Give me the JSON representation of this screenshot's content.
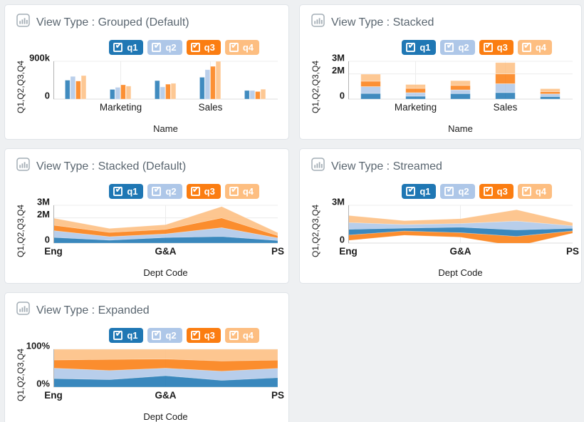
{
  "page": {
    "background": "#eef0f2"
  },
  "palette": {
    "q1": "#1f77b4",
    "q2": "#aec7e8",
    "q3": "#fb7d11",
    "q4": "#fdbe81"
  },
  "icons": {
    "checkbox_check": "✔",
    "title_icon": "bar-chart"
  },
  "legend": {
    "items": [
      {
        "label": "q1",
        "checked": true
      },
      {
        "label": "q2",
        "checked": true
      },
      {
        "label": "q3",
        "checked": true
      },
      {
        "label": "q4",
        "checked": true
      }
    ]
  },
  "cards": [
    {
      "title": "View Type : Grouped (Default)"
    },
    {
      "title": "View Type : Stacked"
    },
    {
      "title": "View Type : Stacked (Default)"
    },
    {
      "title": "View Type : Streamed"
    },
    {
      "title": "View Type : Expanded"
    }
  ],
  "chart_data": [
    {
      "type": "bar",
      "variant": "grouped",
      "title": "View Type : Grouped (Default)",
      "categories": [
        "",
        "Marketing",
        "",
        "Sales",
        ""
      ],
      "series": [
        {
          "name": "q1",
          "values": [
            450,
            230,
            440,
            520,
            205
          ]
        },
        {
          "name": "q2",
          "values": [
            540,
            280,
            290,
            700,
            205
          ]
        },
        {
          "name": "q3",
          "values": [
            430,
            340,
            355,
            780,
            180
          ]
        },
        {
          "name": "q4",
          "values": [
            560,
            310,
            375,
            900,
            235
          ]
        }
      ],
      "xlabel": "Name",
      "ylabel": "Q1,Q2,Q3,Q4",
      "ylim": [
        0,
        900
      ],
      "yticks": [
        {
          "value": 900,
          "label": "900k"
        },
        {
          "value": 0,
          "label": "0"
        }
      ],
      "units": "thousands",
      "grid": true,
      "legend_position": "top-right"
    },
    {
      "type": "bar",
      "variant": "stacked",
      "title": "View Type : Stacked",
      "categories": [
        "",
        "Marketing",
        "",
        "Sales",
        ""
      ],
      "series": [
        {
          "name": "q1",
          "values": [
            450,
            230,
            440,
            520,
            205
          ]
        },
        {
          "name": "q2",
          "values": [
            540,
            280,
            290,
            700,
            205
          ]
        },
        {
          "name": "q3",
          "values": [
            430,
            340,
            355,
            780,
            180
          ]
        },
        {
          "name": "q4",
          "values": [
            560,
            310,
            375,
            900,
            235
          ]
        }
      ],
      "xlabel": "Name",
      "ylabel": "Q1,Q2,Q3,Q4",
      "ylim": [
        0,
        3000
      ],
      "yticks": [
        {
          "value": 3000,
          "label": "3M"
        },
        {
          "value": 2000,
          "label": "2M"
        },
        {
          "value": 0,
          "label": "0"
        }
      ],
      "units": "thousands",
      "grid": true,
      "legend_position": "top-right"
    },
    {
      "type": "area",
      "variant": "stacked",
      "title": "View Type : Stacked (Default)",
      "categories": [
        "Eng",
        "",
        "G&A",
        "",
        "PS"
      ],
      "series": [
        {
          "name": "q1",
          "values": [
            450,
            230,
            440,
            520,
            205
          ]
        },
        {
          "name": "q2",
          "values": [
            540,
            280,
            290,
            700,
            205
          ]
        },
        {
          "name": "q3",
          "values": [
            430,
            340,
            355,
            780,
            180
          ]
        },
        {
          "name": "q4",
          "values": [
            560,
            310,
            375,
            900,
            235
          ]
        }
      ],
      "xlabel": "Dept Code",
      "ylabel": "Q1,Q2,Q3,Q4",
      "ylim": [
        0,
        3000
      ],
      "yticks": [
        {
          "value": 3000,
          "label": "3M"
        },
        {
          "value": 2000,
          "label": "2M"
        },
        {
          "value": 0,
          "label": "0"
        }
      ],
      "units": "thousands",
      "grid": true,
      "legend_position": "top-right"
    },
    {
      "type": "area",
      "variant": "streamed",
      "title": "View Type : Streamed",
      "categories": [
        "Eng",
        "",
        "G&A",
        "",
        "PS"
      ],
      "series": [
        {
          "name": "q1",
          "values": [
            450,
            230,
            440,
            520,
            205
          ]
        },
        {
          "name": "q2",
          "values": [
            540,
            280,
            290,
            700,
            205
          ]
        },
        {
          "name": "q3",
          "values": [
            430,
            340,
            355,
            780,
            180
          ]
        },
        {
          "name": "q4",
          "values": [
            560,
            310,
            375,
            900,
            235
          ]
        }
      ],
      "stream_order": [
        "q3",
        "q1",
        "q2",
        "q4"
      ],
      "stream_center": 1200,
      "xlabel": "Dept Code",
      "ylabel": "Q1,Q2,Q3,Q4",
      "ylim": [
        0,
        3000
      ],
      "yticks": [
        {
          "value": 3000,
          "label": "3M"
        },
        {
          "value": 0,
          "label": "0"
        }
      ],
      "units": "thousands",
      "grid": true,
      "legend_position": "top-right"
    },
    {
      "type": "area",
      "variant": "expanded",
      "title": "View Type : Expanded",
      "categories": [
        "Eng",
        "",
        "G&A",
        "",
        "PS"
      ],
      "series": [
        {
          "name": "q1",
          "values": [
            450,
            230,
            440,
            520,
            205
          ]
        },
        {
          "name": "q2",
          "values": [
            540,
            280,
            290,
            700,
            205
          ]
        },
        {
          "name": "q3",
          "values": [
            430,
            340,
            355,
            780,
            180
          ]
        },
        {
          "name": "q4",
          "values": [
            560,
            310,
            375,
            900,
            235
          ]
        }
      ],
      "xlabel": "Dept Code",
      "ylabel": "Q1,Q2,Q3,Q4",
      "ylim": [
        0,
        100
      ],
      "yticks": [
        {
          "value": 100,
          "label": "100%"
        },
        {
          "value": 0,
          "label": "0%"
        }
      ],
      "units": "percent of total",
      "grid": true,
      "legend_position": "top-right"
    }
  ]
}
